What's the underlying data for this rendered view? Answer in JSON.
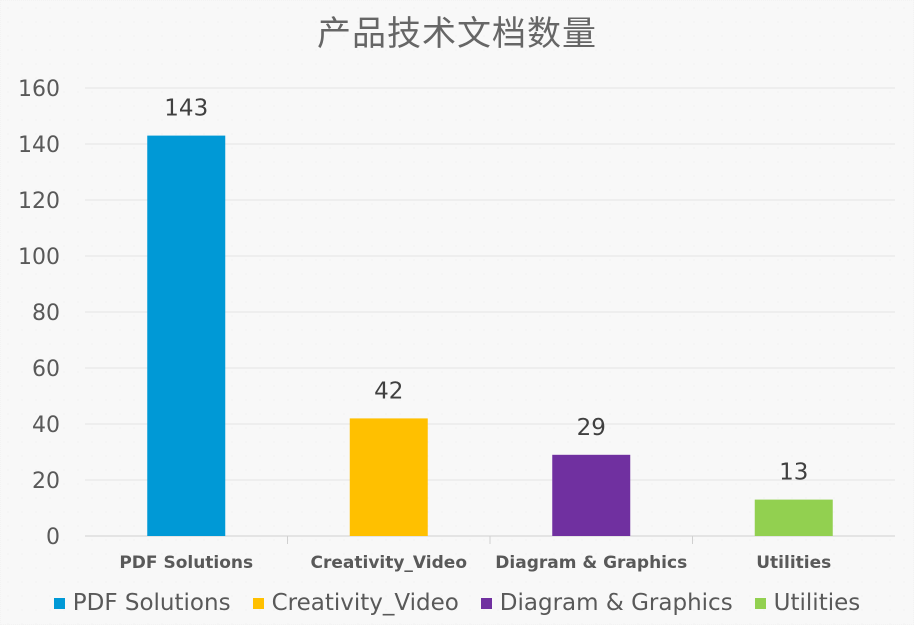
{
  "chart_data": {
    "type": "bar",
    "title": "产品技术文档数量",
    "categories": [
      "PDF Solutions",
      "Creativity_Video",
      "Diagram & Graphics",
      "Utilities"
    ],
    "values": [
      143,
      42,
      29,
      13
    ],
    "colors": [
      "#0099d6",
      "#ffc000",
      "#7030a0",
      "#92d050"
    ],
    "ylim": [
      0,
      160
    ],
    "yticks": [
      0,
      20,
      40,
      60,
      80,
      100,
      120,
      140,
      160
    ],
    "grid": true,
    "data_labels": true,
    "legend": {
      "position": "bottom",
      "entries": [
        "PDF Solutions",
        "Creativity_Video",
        "Diagram & Graphics",
        "Utilities"
      ]
    }
  }
}
